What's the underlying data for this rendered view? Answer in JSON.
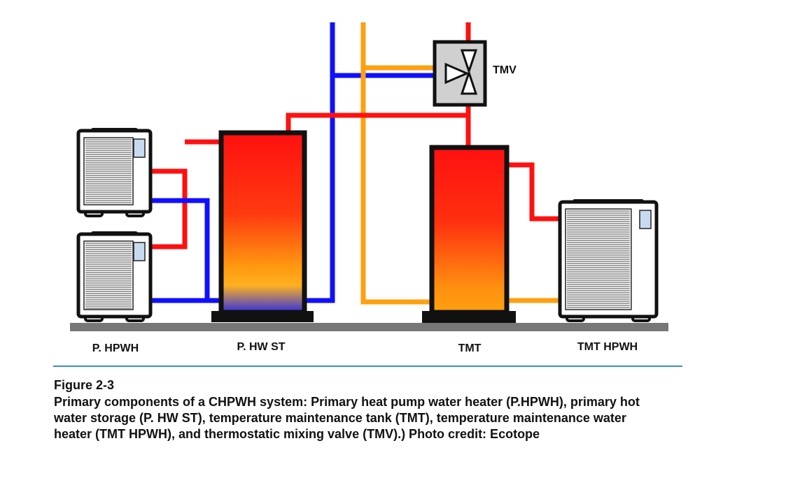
{
  "labels": {
    "p_hpwh": "P. HPWH",
    "p_hw_st": "P. HW ST",
    "tmt": "TMT",
    "tmt_hpwh": "TMT HPWH",
    "tmv": "TMV"
  },
  "caption": {
    "figure": "Figure 2-3",
    "lines": [
      "Primary components of a CHPWH system: Primary heat pump water heater (P.HPWH), primary hot",
      "water storage (P. HW ST), temperature maintenance tank (TMT), temperature maintenance water",
      "heater (TMT HPWH), and thermostatic mixing valve (TMV).)  Photo credit: Ecotope"
    ]
  }
}
